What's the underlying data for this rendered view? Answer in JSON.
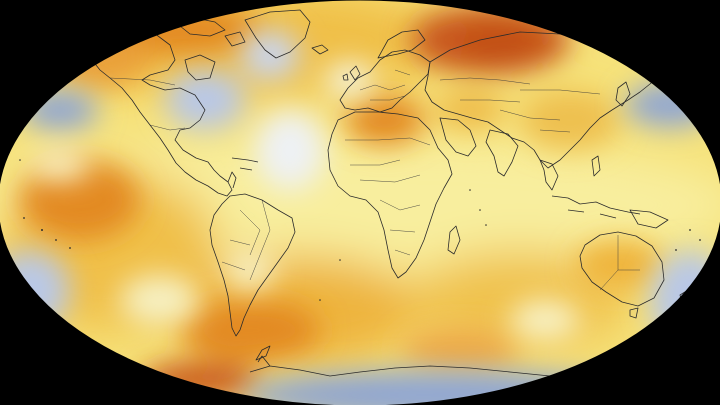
{
  "map": {
    "projection": "robinson-like-ellipse",
    "background_color": "#000000",
    "palette": {
      "cold_strong": "#8fa6d4",
      "cold": "#b9c8e6",
      "neutral": "#eef1f4",
      "warm_light": "#f7ec9a",
      "warm": "#f3d35a",
      "warm_mid": "#efb43a",
      "hot": "#e38a24",
      "hottest": "#c9581a"
    },
    "coastline_color": "#2b2b2b",
    "features": [
      {
        "name": "cool-anomaly-north-pacific-west",
        "level": "cold_strong"
      },
      {
        "name": "cool-anomaly-north-pacific-east",
        "level": "cold_strong"
      },
      {
        "name": "cool-anomaly-north-america-east",
        "level": "cold"
      },
      {
        "name": "cool-anomaly-north-atlantic",
        "level": "neutral"
      },
      {
        "name": "cool-anomaly-southern-ocean-east",
        "level": "cold"
      },
      {
        "name": "cool-anomaly-southern-ocean-west",
        "level": "cold"
      },
      {
        "name": "cool-anomaly-antarctica",
        "level": "cold_strong"
      },
      {
        "name": "warm-anomaly-siberia",
        "level": "hottest"
      },
      {
        "name": "warm-anomaly-arctic-west",
        "level": "hot"
      },
      {
        "name": "warm-anomaly-north-africa",
        "level": "hot"
      },
      {
        "name": "warm-anomaly-south-atlantic",
        "level": "hot"
      },
      {
        "name": "warm-anomaly-south-pacific",
        "level": "hot"
      },
      {
        "name": "warm-anomaly-australia",
        "level": "warm_mid"
      },
      {
        "name": "warm-anomaly-weddell",
        "level": "hottest"
      }
    ]
  }
}
